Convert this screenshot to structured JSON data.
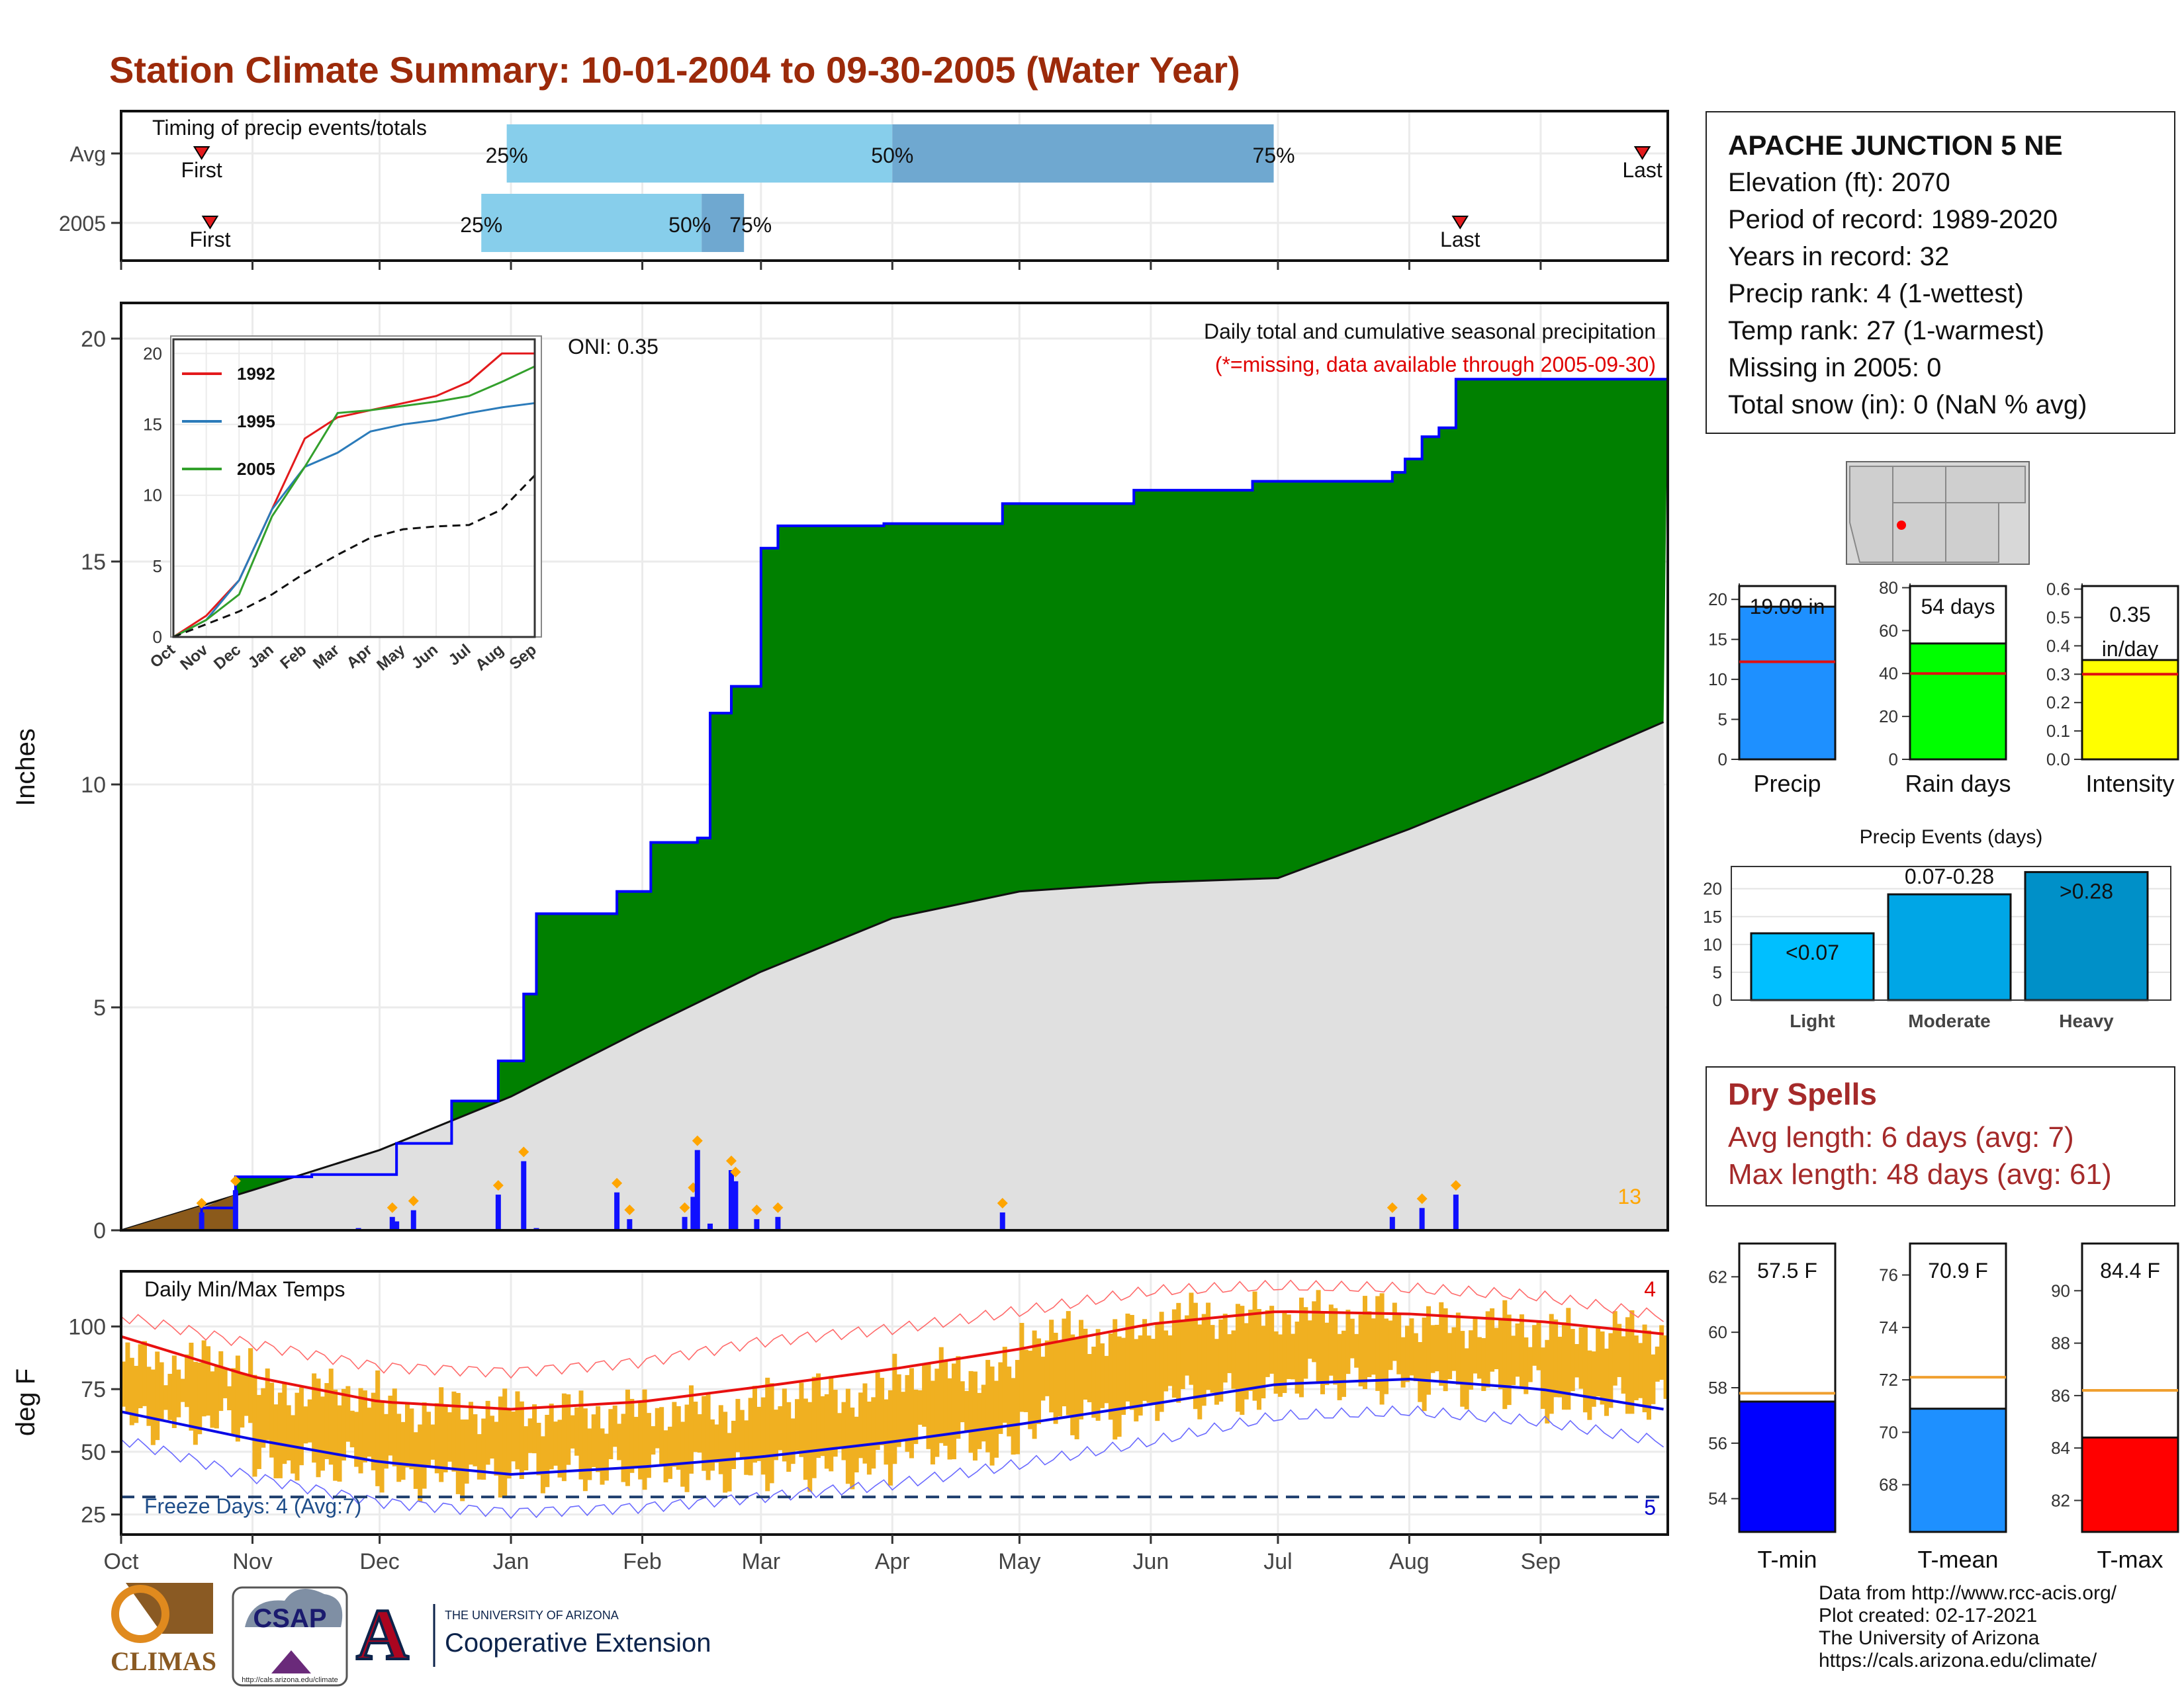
{
  "title": "Station Climate Summary: 10-01-2004 to 09-30-2005 (Water Year)",
  "timing": {
    "label": "Timing of precip events/totals",
    "rows": [
      {
        "name": "Avg",
        "first_date": "2004-10-20",
        "last_date": "2005-09-25",
        "p25_date": "2004-12-31",
        "p50_date": "2005-04-01",
        "p75_date": "2005-06-30",
        "first_label": "First",
        "last_label": "Last",
        "p25_label": "25%",
        "p50_label": "50%",
        "p75_label": "75%"
      },
      {
        "name": "2005",
        "first_date": "2004-10-22",
        "last_date": "2005-08-13",
        "p25_date": "2004-12-25",
        "p50_date": "2005-02-15",
        "p75_date": "2005-02-25",
        "first_label": "First",
        "last_label": "Last",
        "p25_label": "25%",
        "p50_label": "50%",
        "p75_label": "75%"
      }
    ]
  },
  "main": {
    "ylabel": "Inches",
    "yticks": [
      0,
      5,
      10,
      15,
      20
    ],
    "ylim": [
      0,
      20.8
    ],
    "top_label": "Daily total and cumulative seasonal precipitation",
    "missing_note": "(*=missing, data available through 2005-09-30)",
    "oni": "ONI: 0.35",
    "corner_count": "13"
  },
  "inset": {
    "ticks": [
      "Oct",
      "Nov",
      "Dec",
      "Jan",
      "Feb",
      "Mar",
      "Apr",
      "May",
      "Jun",
      "Jul",
      "Aug",
      "Sep"
    ],
    "yticks": [
      0,
      5,
      10,
      15,
      20
    ],
    "legend": [
      {
        "name": "1992",
        "color": "#e31a1c"
      },
      {
        "name": "1995",
        "color": "#2b7bba"
      },
      {
        "name": "2005",
        "color": "#33a02c"
      }
    ]
  },
  "temps": {
    "label": "Daily Min/Max Temps",
    "ylabel": "deg F",
    "yticks": [
      25,
      50,
      75,
      100
    ],
    "freeze_label": "Freeze Days: 4 (Avg:7)",
    "freeze_line": 32,
    "max_count": "4",
    "min_count": "5"
  },
  "months": [
    "Oct",
    "Nov",
    "Dec",
    "Jan",
    "Feb",
    "Mar",
    "Apr",
    "May",
    "Jun",
    "Jul",
    "Aug",
    "Sep"
  ],
  "station": {
    "name": "APACHE JUNCTION 5 NE",
    "lines": [
      "Elevation (ft): 2070",
      "Period of record: 1989-2020",
      "Years in record: 32",
      "Precip rank: 4 (1-wettest)",
      "Temp rank: 27 (1-warmest)",
      "Missing in 2005: 0",
      "Total snow (in): 0 (NaN % avg)"
    ]
  },
  "summary_bars": [
    {
      "label": "Precip",
      "value": 19.09,
      "avg": 12.2,
      "text": "19.09 in",
      "color": "#1e90ff",
      "yticks": [
        0,
        5,
        10,
        15,
        20
      ],
      "ylim": [
        0,
        22
      ]
    },
    {
      "label": "Rain days",
      "value": 54,
      "avg": 40,
      "text": "54 days",
      "color": "#00ff00",
      "yticks": [
        0,
        20,
        40,
        60,
        80
      ],
      "ylim": [
        0,
        82
      ]
    },
    {
      "label": "Intensity",
      "value": 0.35,
      "avg": 0.3,
      "text": "0.35 in/day",
      "color": "#ffff00",
      "yticks": [
        0.0,
        0.1,
        0.2,
        0.3,
        0.4,
        0.5,
        0.6
      ],
      "ylim": [
        0,
        0.62
      ]
    }
  ],
  "events": {
    "title": "Precip Events (days)",
    "categories": [
      "Light",
      "Moderate",
      "Heavy"
    ],
    "values": [
      12,
      19,
      23
    ],
    "labels": [
      "<0.07",
      "0.07-0.28",
      ">0.28"
    ],
    "colors": [
      "#00bfff",
      "#00a6e6",
      "#0090c8"
    ],
    "yticks": [
      0,
      5,
      10,
      15,
      20
    ],
    "ylim": [
      0,
      24
    ]
  },
  "dry_spells": {
    "title": "Dry Spells",
    "avg_line": "Avg length: 6 days (avg: 7)",
    "max_line": "Max length: 48 days (avg: 61)"
  },
  "temp_bars": [
    {
      "label": "T-min",
      "value": 57.5,
      "avg": 57.8,
      "text": "57.5 F",
      "color": "#0000ff",
      "yticks": [
        54,
        56,
        58,
        60,
        62
      ],
      "ylim": [
        52.8,
        63.2
      ]
    },
    {
      "label": "T-mean",
      "value": 70.9,
      "avg": 72.1,
      "text": "70.9 F",
      "color": "#1e90ff",
      "yticks": [
        68,
        70,
        72,
        74,
        76
      ],
      "ylim": [
        66.2,
        77.2
      ]
    },
    {
      "label": "T-max",
      "value": 84.4,
      "avg": 86.2,
      "text": "84.4 F",
      "color": "#ff0000",
      "yticks": [
        82,
        84,
        86,
        88,
        90
      ],
      "ylim": [
        80.8,
        91.8
      ]
    }
  ],
  "credits": [
    "Data from http://www.rcc-acis.org/",
    "Plot created: 02-17-2021",
    "The University of Arizona",
    "https://cals.arizona.edu/climate/"
  ],
  "logos": {
    "climas": "CLIMAS",
    "csap": "CSAP",
    "csap_url": "http://cals.arizona.edu/climate",
    "ua_small": "THE UNIVERSITY OF ARIZONA",
    "ua_big": "Cooperative Extension"
  },
  "chart_data": {
    "type": "area",
    "title": "Daily total and cumulative seasonal precipitation",
    "ylabel": "Inches",
    "ylim": [
      0,
      20.8
    ],
    "cumulative_2005": [
      {
        "date": "2004-10-01",
        "v": 0
      },
      {
        "date": "2004-10-20",
        "v": 0.5
      },
      {
        "date": "2004-10-28",
        "v": 1.2
      },
      {
        "date": "2004-11-15",
        "v": 1.25
      },
      {
        "date": "2004-12-05",
        "v": 1.95
      },
      {
        "date": "2004-12-18",
        "v": 2.9
      },
      {
        "date": "2004-12-29",
        "v": 3.8
      },
      {
        "date": "2005-01-04",
        "v": 5.3
      },
      {
        "date": "2005-01-07",
        "v": 7.1
      },
      {
        "date": "2005-01-26",
        "v": 7.6
      },
      {
        "date": "2005-02-03",
        "v": 8.7
      },
      {
        "date": "2005-02-14",
        "v": 8.8
      },
      {
        "date": "2005-02-17",
        "v": 11.6
      },
      {
        "date": "2005-02-22",
        "v": 12.2
      },
      {
        "date": "2005-03-01",
        "v": 15.3
      },
      {
        "date": "2005-03-05",
        "v": 15.8
      },
      {
        "date": "2005-03-30",
        "v": 15.85
      },
      {
        "date": "2005-04-27",
        "v": 16.3
      },
      {
        "date": "2005-05-28",
        "v": 16.6
      },
      {
        "date": "2005-06-25",
        "v": 16.8
      },
      {
        "date": "2005-07-28",
        "v": 17.0
      },
      {
        "date": "2005-07-31",
        "v": 17.3
      },
      {
        "date": "2005-08-04",
        "v": 17.8
      },
      {
        "date": "2005-08-08",
        "v": 18.0
      },
      {
        "date": "2005-08-12",
        "v": 19.09
      },
      {
        "date": "2005-09-30",
        "v": 19.09
      }
    ],
    "cumulative_avg": [
      {
        "date": "2004-10-01",
        "v": 0
      },
      {
        "date": "2004-11-01",
        "v": 0.9
      },
      {
        "date": "2004-12-01",
        "v": 1.8
      },
      {
        "date": "2005-01-01",
        "v": 3.0
      },
      {
        "date": "2005-02-01",
        "v": 4.5
      },
      {
        "date": "2005-03-01",
        "v": 5.8
      },
      {
        "date": "2005-04-01",
        "v": 7.0
      },
      {
        "date": "2005-05-01",
        "v": 7.6
      },
      {
        "date": "2005-06-01",
        "v": 7.8
      },
      {
        "date": "2005-07-01",
        "v": 7.9
      },
      {
        "date": "2005-08-01",
        "v": 9.0
      },
      {
        "date": "2005-09-01",
        "v": 10.2
      },
      {
        "date": "2005-09-30",
        "v": 11.4
      }
    ],
    "daily_2005": [
      {
        "date": "2004-10-20",
        "v": 0.4
      },
      {
        "date": "2004-10-28",
        "v": 0.9
      },
      {
        "date": "2004-11-26",
        "v": 0.05
      },
      {
        "date": "2004-12-04",
        "v": 0.3
      },
      {
        "date": "2004-12-05",
        "v": 0.2
      },
      {
        "date": "2004-12-09",
        "v": 0.45
      },
      {
        "date": "2004-12-29",
        "v": 0.8
      },
      {
        "date": "2005-01-04",
        "v": 1.55
      },
      {
        "date": "2005-01-07",
        "v": 0.05
      },
      {
        "date": "2005-01-26",
        "v": 0.85
      },
      {
        "date": "2005-01-29",
        "v": 0.25
      },
      {
        "date": "2005-02-11",
        "v": 0.3
      },
      {
        "date": "2005-02-13",
        "v": 0.75
      },
      {
        "date": "2005-02-14",
        "v": 1.8
      },
      {
        "date": "2005-02-17",
        "v": 0.15
      },
      {
        "date": "2005-02-22",
        "v": 1.35
      },
      {
        "date": "2005-02-23",
        "v": 1.1
      },
      {
        "date": "2005-02-28",
        "v": 0.25
      },
      {
        "date": "2005-03-05",
        "v": 0.3
      },
      {
        "date": "2005-04-27",
        "v": 0.4
      },
      {
        "date": "2005-07-28",
        "v": 0.3
      },
      {
        "date": "2005-08-04",
        "v": 0.5
      },
      {
        "date": "2005-08-12",
        "v": 0.8
      }
    ],
    "inset_series": [
      {
        "name": "1992",
        "points": [
          [
            0,
            0
          ],
          [
            1,
            1.5
          ],
          [
            2,
            4
          ],
          [
            3,
            9
          ],
          [
            4,
            14
          ],
          [
            5,
            15.5
          ],
          [
            6,
            16
          ],
          [
            7,
            16.5
          ],
          [
            8,
            17
          ],
          [
            9,
            18
          ],
          [
            10,
            20
          ],
          [
            11,
            20
          ]
        ]
      },
      {
        "name": "1995",
        "points": [
          [
            0,
            0
          ],
          [
            1,
            1.2
          ],
          [
            2,
            4
          ],
          [
            3,
            9
          ],
          [
            4,
            12
          ],
          [
            5,
            13
          ],
          [
            6,
            14.5
          ],
          [
            7,
            15
          ],
          [
            8,
            15.3
          ],
          [
            9,
            15.8
          ],
          [
            10,
            16.2
          ],
          [
            11,
            16.5
          ]
        ]
      },
      {
        "name": "2005",
        "points": [
          [
            0,
            0
          ],
          [
            1,
            1.2
          ],
          [
            2,
            3
          ],
          [
            3,
            8.5
          ],
          [
            4,
            12
          ],
          [
            5,
            15.8
          ],
          [
            6,
            16
          ],
          [
            7,
            16.3
          ],
          [
            8,
            16.6
          ],
          [
            9,
            17
          ],
          [
            10,
            18
          ],
          [
            11,
            19.09
          ]
        ]
      },
      {
        "name": "avg",
        "points": [
          [
            0,
            0
          ],
          [
            1,
            0.9
          ],
          [
            2,
            1.8
          ],
          [
            3,
            3
          ],
          [
            4,
            4.5
          ],
          [
            5,
            5.8
          ],
          [
            6,
            7
          ],
          [
            7,
            7.6
          ],
          [
            8,
            7.8
          ],
          [
            9,
            7.9
          ],
          [
            10,
            9
          ],
          [
            11,
            11.4
          ]
        ]
      }
    ],
    "temp_avg_max": [
      {
        "date": "2004-10-01",
        "v": 96
      },
      {
        "date": "2004-11-01",
        "v": 80
      },
      {
        "date": "2004-12-01",
        "v": 70
      },
      {
        "date": "2005-01-01",
        "v": 67
      },
      {
        "date": "2005-02-01",
        "v": 70
      },
      {
        "date": "2005-03-01",
        "v": 76
      },
      {
        "date": "2005-04-01",
        "v": 83
      },
      {
        "date": "2005-05-01",
        "v": 91
      },
      {
        "date": "2005-06-01",
        "v": 101
      },
      {
        "date": "2005-07-01",
        "v": 106
      },
      {
        "date": "2005-08-01",
        "v": 105
      },
      {
        "date": "2005-09-01",
        "v": 102
      },
      {
        "date": "2005-09-30",
        "v": 97
      }
    ],
    "temp_avg_min": [
      {
        "date": "2004-10-01",
        "v": 66
      },
      {
        "date": "2004-11-01",
        "v": 55
      },
      {
        "date": "2004-12-01",
        "v": 46
      },
      {
        "date": "2005-01-01",
        "v": 41
      },
      {
        "date": "2005-02-01",
        "v": 44
      },
      {
        "date": "2005-03-01",
        "v": 48
      },
      {
        "date": "2005-04-01",
        "v": 54
      },
      {
        "date": "2005-05-01",
        "v": 61
      },
      {
        "date": "2005-06-01",
        "v": 69
      },
      {
        "date": "2005-07-01",
        "v": 77
      },
      {
        "date": "2005-08-01",
        "v": 79
      },
      {
        "date": "2005-09-01",
        "v": 75
      },
      {
        "date": "2005-09-30",
        "v": 67
      }
    ],
    "temp_record_max": [
      {
        "date": "2004-10-01",
        "v": 104
      },
      {
        "date": "2004-11-01",
        "v": 93
      },
      {
        "date": "2004-12-01",
        "v": 84
      },
      {
        "date": "2005-01-01",
        "v": 82
      },
      {
        "date": "2005-02-01",
        "v": 86
      },
      {
        "date": "2005-03-01",
        "v": 94
      },
      {
        "date": "2005-04-01",
        "v": 99
      },
      {
        "date": "2005-05-01",
        "v": 106
      },
      {
        "date": "2005-06-01",
        "v": 114
      },
      {
        "date": "2005-07-01",
        "v": 116
      },
      {
        "date": "2005-08-01",
        "v": 115
      },
      {
        "date": "2005-09-01",
        "v": 112
      },
      {
        "date": "2005-09-30",
        "v": 104
      }
    ],
    "temp_record_min": [
      {
        "date": "2004-10-01",
        "v": 55
      },
      {
        "date": "2004-11-01",
        "v": 40
      },
      {
        "date": "2004-12-01",
        "v": 30
      },
      {
        "date": "2005-01-01",
        "v": 26
      },
      {
        "date": "2005-02-01",
        "v": 28
      },
      {
        "date": "2005-03-01",
        "v": 32
      },
      {
        "date": "2005-04-01",
        "v": 37
      },
      {
        "date": "2005-05-01",
        "v": 45
      },
      {
        "date": "2005-06-01",
        "v": 54
      },
      {
        "date": "2005-07-01",
        "v": 64
      },
      {
        "date": "2005-08-01",
        "v": 66
      },
      {
        "date": "2005-09-01",
        "v": 62
      },
      {
        "date": "2005-09-30",
        "v": 54
      }
    ],
    "temp_daily_2005_monthly": [
      {
        "month": "Oct",
        "low": 62,
        "high": 86
      },
      {
        "month": "Nov",
        "low": 45,
        "high": 74
      },
      {
        "month": "Dec",
        "low": 40,
        "high": 67
      },
      {
        "month": "Jan",
        "low": 42,
        "high": 66
      },
      {
        "month": "Feb",
        "low": 42,
        "high": 67
      },
      {
        "month": "Mar",
        "low": 44,
        "high": 73
      },
      {
        "month": "Apr",
        "low": 52,
        "high": 82
      },
      {
        "month": "May",
        "low": 64,
        "high": 97
      },
      {
        "month": "Jun",
        "low": 72,
        "high": 104
      },
      {
        "month": "Jul",
        "low": 78,
        "high": 105
      },
      {
        "month": "Aug",
        "low": 76,
        "high": 101
      },
      {
        "month": "Sep",
        "low": 70,
        "high": 98
      }
    ],
    "temp_ylim": [
      17,
      122
    ]
  }
}
